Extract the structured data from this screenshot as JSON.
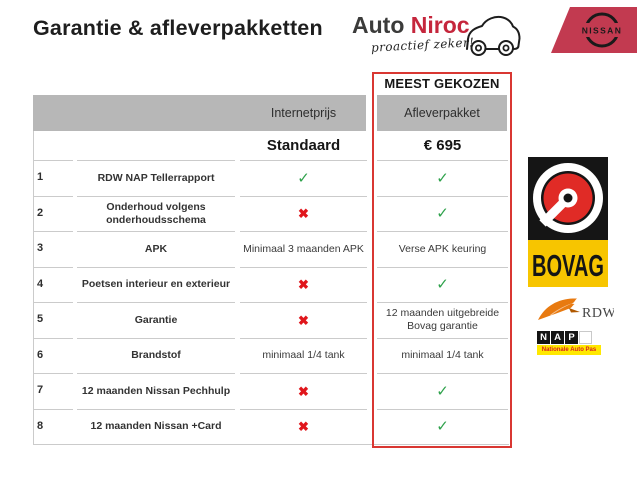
{
  "header": {
    "title": "Garantie & afleverpakketten",
    "brand": {
      "name_part1": "Auto ",
      "name_part2": "Niroc",
      "tagline": "proactief zeker!"
    },
    "nissan": {
      "label": "NISSAN"
    }
  },
  "table": {
    "badge": "MEEST GEKOZEN",
    "col_standard_header": "Internetprijs",
    "col_package_header": "Afleverpakket",
    "price_standard": "Standaard",
    "price_package": "€ 695",
    "rows": [
      {
        "num": "1",
        "label": "RDW NAP Tellerrapport",
        "standard": {
          "type": "check"
        },
        "package": {
          "type": "check"
        }
      },
      {
        "num": "2",
        "label": "Onderhoud volgens onderhoudsschema",
        "standard": {
          "type": "cross"
        },
        "package": {
          "type": "check"
        }
      },
      {
        "num": "3",
        "label": "APK",
        "standard": {
          "type": "text",
          "text": "Minimaal 3 maanden APK"
        },
        "package": {
          "type": "text",
          "text": "Verse APK keuring"
        }
      },
      {
        "num": "4",
        "label": "Poetsen interieur en exterieur",
        "standard": {
          "type": "cross"
        },
        "package": {
          "type": "check"
        }
      },
      {
        "num": "5",
        "label": "Garantie",
        "standard": {
          "type": "cross"
        },
        "package": {
          "type": "text",
          "text": "12 maanden uitgebreide Bovag garantie"
        }
      },
      {
        "num": "6",
        "label": "Brandstof",
        "standard": {
          "type": "text",
          "text": "minimaal 1/4 tank"
        },
        "package": {
          "type": "text",
          "text": "minimaal 1/4 tank"
        }
      },
      {
        "num": "7",
        "label": "12 maanden Nissan Pechhulp",
        "standard": {
          "type": "cross"
        },
        "package": {
          "type": "check"
        }
      },
      {
        "num": "8",
        "label": "12 maanden Nissan +Card",
        "standard": {
          "type": "cross"
        },
        "package": {
          "type": "check"
        }
      }
    ]
  },
  "badges": {
    "bovag": {
      "label": "BOVAG"
    },
    "rdw": {
      "label": "RDW"
    },
    "nap": {
      "letters": [
        "N",
        "A",
        "P"
      ],
      "subtitle": "Nationale Auto Pas"
    }
  },
  "icons": {
    "check": "✓",
    "cross": "✖"
  },
  "colors": {
    "accent_red": "#d93732",
    "check_green": "#2fa24c",
    "cross_red": "#e0161c",
    "brand_red": "#c5263c",
    "nissan_flag_red": "#c23a50",
    "header_gray": "#b7b7b7",
    "bovag_yellow": "#f7c500",
    "bovag_red": "#e02b26",
    "rdw_orange": "#e87a10",
    "nap_yellow": "#ffe800"
  }
}
